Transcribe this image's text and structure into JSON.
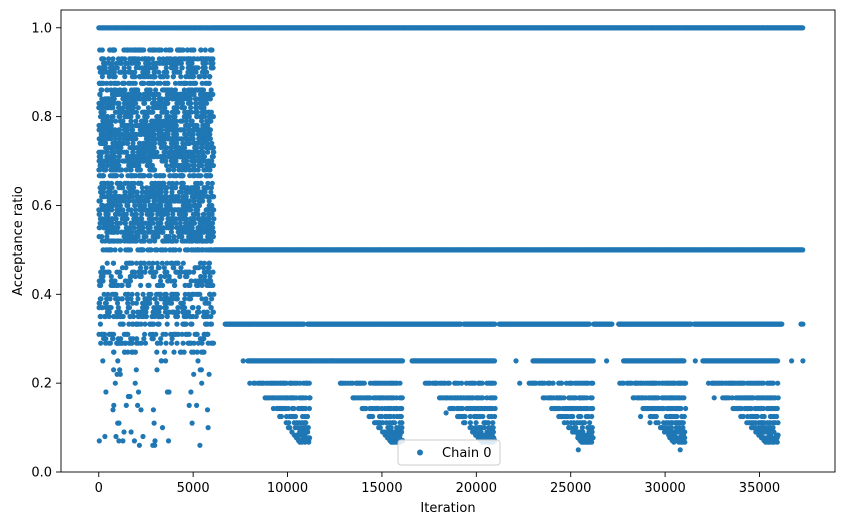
{
  "chart_data": {
    "type": "scatter",
    "xlabel": "Iteration",
    "ylabel": "Acceptance ratio",
    "xlim": [
      -2000,
      39000
    ],
    "ylim": [
      0.0,
      1.04
    ],
    "xticks": [
      0,
      5000,
      10000,
      15000,
      20000,
      25000,
      30000,
      35000
    ],
    "xtick_labels": [
      "0",
      "5000",
      "10000",
      "15000",
      "20000",
      "25000",
      "30000",
      "35000"
    ],
    "yticks": [
      0.0,
      0.2,
      0.4,
      0.6,
      0.8,
      1.0
    ],
    "ytick_labels": [
      "0.0",
      "0.2",
      "0.4",
      "0.6",
      "0.8",
      "1.0"
    ],
    "grid": false,
    "legend_position": "bottom-center",
    "marker_color": "#1f77b4",
    "series": [
      {
        "name": "Chain 0",
        "description_bands": [
          {
            "x_range": [
              0,
              6100
            ],
            "y_levels": [
              1.0,
              0.95,
              0.93,
              0.92,
              0.91,
              0.9,
              0.89,
              0.875,
              0.86,
              0.85,
              0.84,
              0.83,
              0.82,
              0.81,
              0.8,
              0.79,
              0.78,
              0.77,
              0.76,
              0.75,
              0.74,
              0.73,
              0.72,
              0.71,
              0.7,
              0.69,
              0.68,
              0.667,
              0.65,
              0.64,
              0.63,
              0.62,
              0.61,
              0.6,
              0.59,
              0.58,
              0.57,
              0.56,
              0.55,
              0.54,
              0.53,
              0.52,
              0.5,
              0.47,
              0.46,
              0.45,
              0.44,
              0.43,
              0.42,
              0.4,
              0.39,
              0.38,
              0.37,
              0.36,
              0.35,
              0.333,
              0.31,
              0.3,
              0.29,
              0.27,
              0.25,
              0.23,
              0.22,
              0.2,
              0.18,
              0.17,
              0.15,
              0.14,
              0.11,
              0.1,
              0.09,
              0.08,
              0.07,
              0.06
            ]
          },
          {
            "x_range": [
              6100,
              37300
            ],
            "y_levels": [
              1.0,
              0.5
            ]
          },
          {
            "x_range": [
              6700,
              37300
            ],
            "y_levels": [
              0.333
            ]
          },
          {
            "x_range": [
              7700,
              37300
            ],
            "y_levels": [
              0.25
            ]
          },
          {
            "x_range": [
              7700,
              36000
            ],
            "y_levels": [
              0.2,
              0.167,
              0.143,
              0.125,
              0.111,
              0.1,
              0.09,
              0.083,
              0.077,
              0.071,
              0.067,
              0.05
            ]
          }
        ]
      }
    ]
  }
}
